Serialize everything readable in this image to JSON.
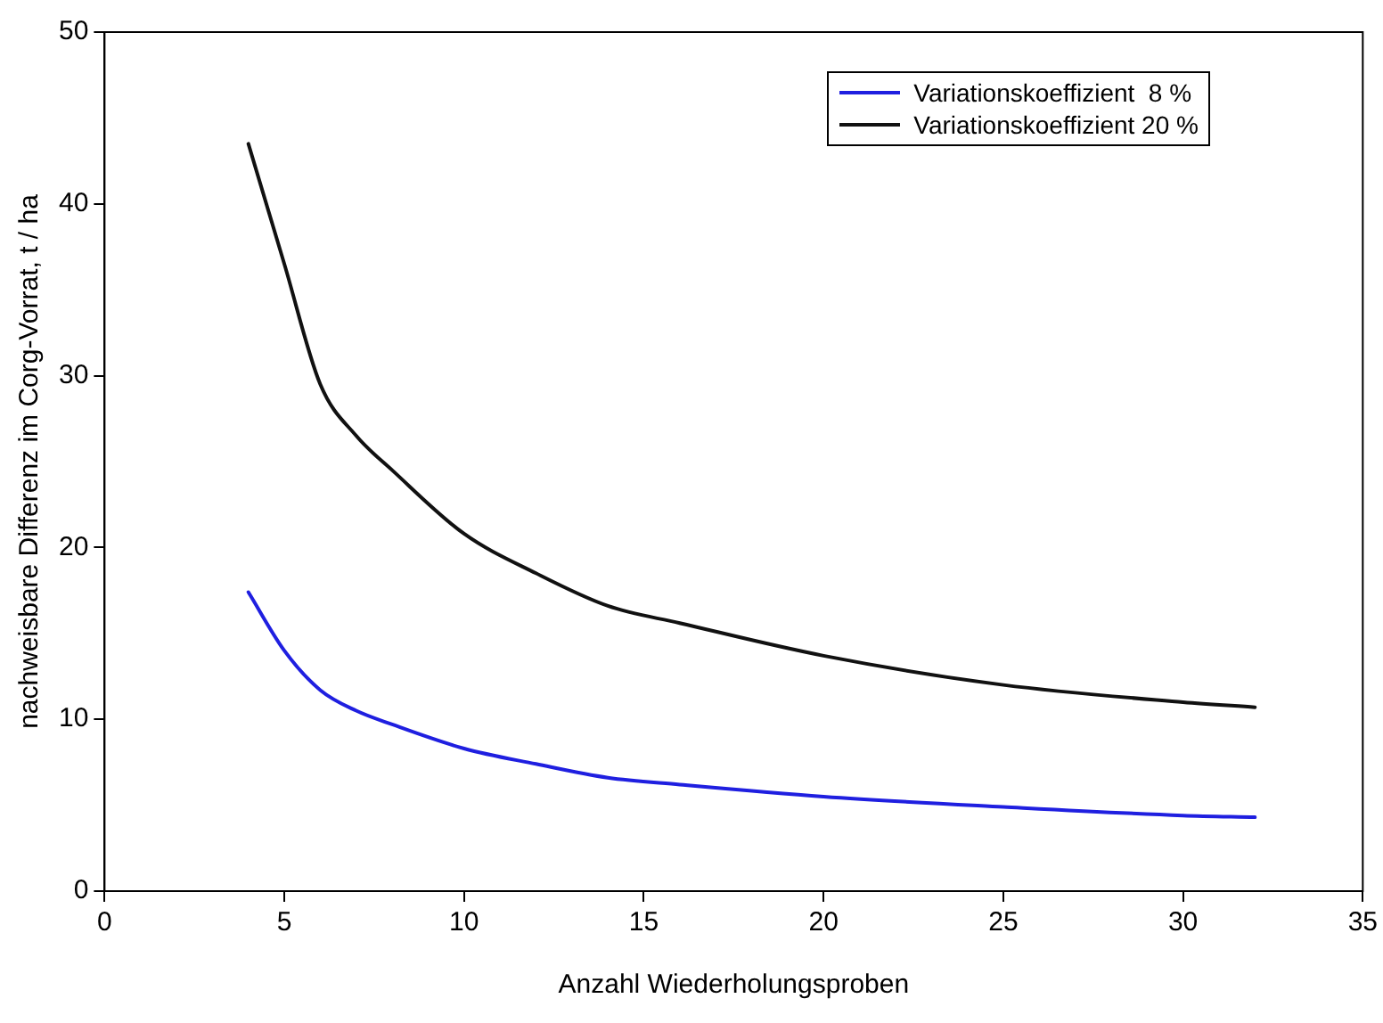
{
  "chart_data": {
    "type": "line",
    "xlabel": "Anzahl Wiederholungsproben",
    "ylabel": "nachweisbare Differenz im Corg-Vorrat, t / ha",
    "x": [
      4,
      5,
      6,
      7,
      8,
      10,
      12,
      14,
      16,
      20,
      25,
      30,
      32
    ],
    "series": [
      {
        "name": "Variationskoeffizient  8 %",
        "color": "#1f1fe0",
        "values": [
          17.4,
          14.0,
          11.7,
          10.5,
          9.7,
          8.3,
          7.4,
          6.6,
          6.2,
          5.5,
          4.9,
          4.4,
          4.3
        ]
      },
      {
        "name": "Variationskoeffizient 20 %",
        "color": "#111111",
        "values": [
          43.5,
          36.5,
          29.5,
          26.5,
          24.5,
          20.8,
          18.5,
          16.6,
          15.6,
          13.7,
          12.0,
          11.0,
          10.7
        ]
      }
    ],
    "xlim": [
      0,
      35
    ],
    "xticks": [
      0,
      5,
      10,
      15,
      20,
      25,
      30,
      35
    ],
    "ylim": [
      0,
      50
    ],
    "yticks": [
      0,
      10,
      20,
      30,
      40,
      50
    ],
    "grid": false,
    "legend": "top right",
    "marker": "none",
    "line_style": "solid"
  }
}
